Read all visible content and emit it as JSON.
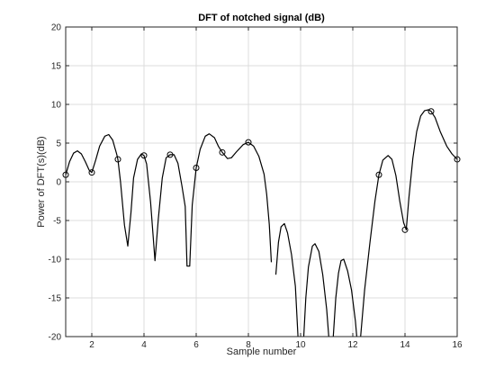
{
  "chart_data": {
    "type": "line",
    "title": "DFT of notched signal (dB)",
    "xlabel": "Sample number",
    "ylabel": "Power of DFT(s)(dB)",
    "xlim": [
      1,
      16
    ],
    "ylim": [
      -20,
      20
    ],
    "xticks": [
      2,
      4,
      6,
      8,
      10,
      12,
      14,
      16
    ],
    "yticks": [
      -20,
      -15,
      -10,
      -5,
      0,
      5,
      10,
      15,
      20
    ],
    "grid": true,
    "colors": {
      "curve": "#000000",
      "markers": "#000000",
      "grid": "#dcdcdc",
      "axes": "#262626"
    },
    "series": [
      {
        "style": "line",
        "segments": [
          [
            [
              1.0,
              0.9
            ],
            [
              1.15,
              2.6
            ],
            [
              1.3,
              3.7
            ],
            [
              1.45,
              4.0
            ],
            [
              1.6,
              3.6
            ],
            [
              1.75,
              2.6
            ],
            [
              1.9,
              1.5
            ],
            [
              2.0,
              1.2
            ],
            [
              2.15,
              2.8
            ],
            [
              2.3,
              4.6
            ],
            [
              2.5,
              5.9
            ],
            [
              2.65,
              6.1
            ],
            [
              2.8,
              5.4
            ],
            [
              2.95,
              3.6
            ],
            [
              3.0,
              2.9
            ],
            [
              3.1,
              0.0
            ],
            [
              3.25,
              -5.6
            ],
            [
              3.38,
              -8.3
            ],
            [
              3.5,
              -4.0
            ],
            [
              3.6,
              0.5
            ],
            [
              3.75,
              2.9
            ],
            [
              3.9,
              3.6
            ],
            [
              4.0,
              3.4
            ],
            [
              4.1,
              2.3
            ],
            [
              4.25,
              -2.6
            ],
            [
              4.42,
              -10.2
            ],
            [
              4.55,
              -4.8
            ],
            [
              4.7,
              0.5
            ],
            [
              4.85,
              3.1
            ],
            [
              5.0,
              3.5
            ],
            [
              5.15,
              3.5
            ],
            [
              5.3,
              2.4
            ],
            [
              5.45,
              -0.5
            ],
            [
              5.58,
              -3.2
            ],
            [
              5.65,
              -10.9
            ],
            [
              5.75,
              -10.9
            ],
            [
              5.85,
              -3.0
            ],
            [
              6.0,
              1.8
            ],
            [
              6.15,
              4.2
            ],
            [
              6.35,
              5.9
            ],
            [
              6.5,
              6.2
            ],
            [
              6.7,
              5.7
            ],
            [
              6.85,
              4.6
            ],
            [
              7.0,
              3.8
            ],
            [
              7.2,
              3.0
            ],
            [
              7.35,
              3.1
            ],
            [
              7.55,
              3.9
            ],
            [
              7.8,
              4.8
            ],
            [
              8.0,
              5.1
            ],
            [
              8.2,
              4.6
            ],
            [
              8.4,
              3.3
            ],
            [
              8.6,
              1.0
            ],
            [
              8.7,
              -1.6
            ],
            [
              8.8,
              -5.5
            ],
            [
              8.88,
              -10.4
            ]
          ],
          [
            [
              9.05,
              -12.0
            ],
            [
              9.15,
              -7.8
            ],
            [
              9.25,
              -5.8
            ],
            [
              9.38,
              -5.4
            ],
            [
              9.5,
              -6.6
            ],
            [
              9.65,
              -9.4
            ],
            [
              9.8,
              -13.5
            ],
            [
              9.9,
              -20.0
            ]
          ],
          [
            [
              10.12,
              -20.0
            ],
            [
              10.2,
              -15.0
            ],
            [
              10.3,
              -11.0
            ],
            [
              10.45,
              -8.3
            ],
            [
              10.55,
              -8.0
            ],
            [
              10.7,
              -9.0
            ],
            [
              10.85,
              -12.0
            ],
            [
              11.0,
              -16.5
            ],
            [
              11.08,
              -20.0
            ]
          ],
          [
            [
              11.25,
              -20.0
            ],
            [
              11.35,
              -15.0
            ],
            [
              11.45,
              -11.8
            ],
            [
              11.55,
              -10.2
            ],
            [
              11.65,
              -10.0
            ],
            [
              11.8,
              -11.5
            ],
            [
              11.95,
              -14.0
            ],
            [
              12.1,
              -18.0
            ],
            [
              12.15,
              -20.0
            ]
          ],
          [
            [
              12.3,
              -20.0
            ],
            [
              12.45,
              -14.0
            ],
            [
              12.65,
              -8.0
            ],
            [
              12.85,
              -2.5
            ],
            [
              13.0,
              0.9
            ],
            [
              13.15,
              2.8
            ],
            [
              13.35,
              3.4
            ],
            [
              13.5,
              2.9
            ],
            [
              13.65,
              0.8
            ],
            [
              13.8,
              -2.5
            ],
            [
              13.95,
              -5.3
            ],
            [
              14.05,
              -6.2
            ],
            [
              14.15,
              -2.0
            ],
            [
              14.3,
              3.0
            ],
            [
              14.45,
              6.5
            ],
            [
              14.6,
              8.5
            ],
            [
              14.75,
              9.2
            ],
            [
              14.9,
              9.3
            ],
            [
              15.0,
              9.1
            ],
            [
              15.15,
              8.3
            ],
            [
              15.35,
              6.5
            ],
            [
              15.6,
              4.6
            ],
            [
              15.8,
              3.6
            ],
            [
              16.0,
              2.9
            ]
          ]
        ]
      },
      {
        "style": "markers",
        "marker": "circle",
        "x": [
          1,
          2,
          3,
          4,
          5,
          6,
          7,
          8,
          13,
          14,
          15,
          16
        ],
        "y": [
          0.9,
          1.2,
          2.9,
          3.4,
          3.5,
          1.8,
          3.8,
          5.1,
          0.9,
          -6.2,
          9.1,
          2.9
        ]
      }
    ]
  }
}
